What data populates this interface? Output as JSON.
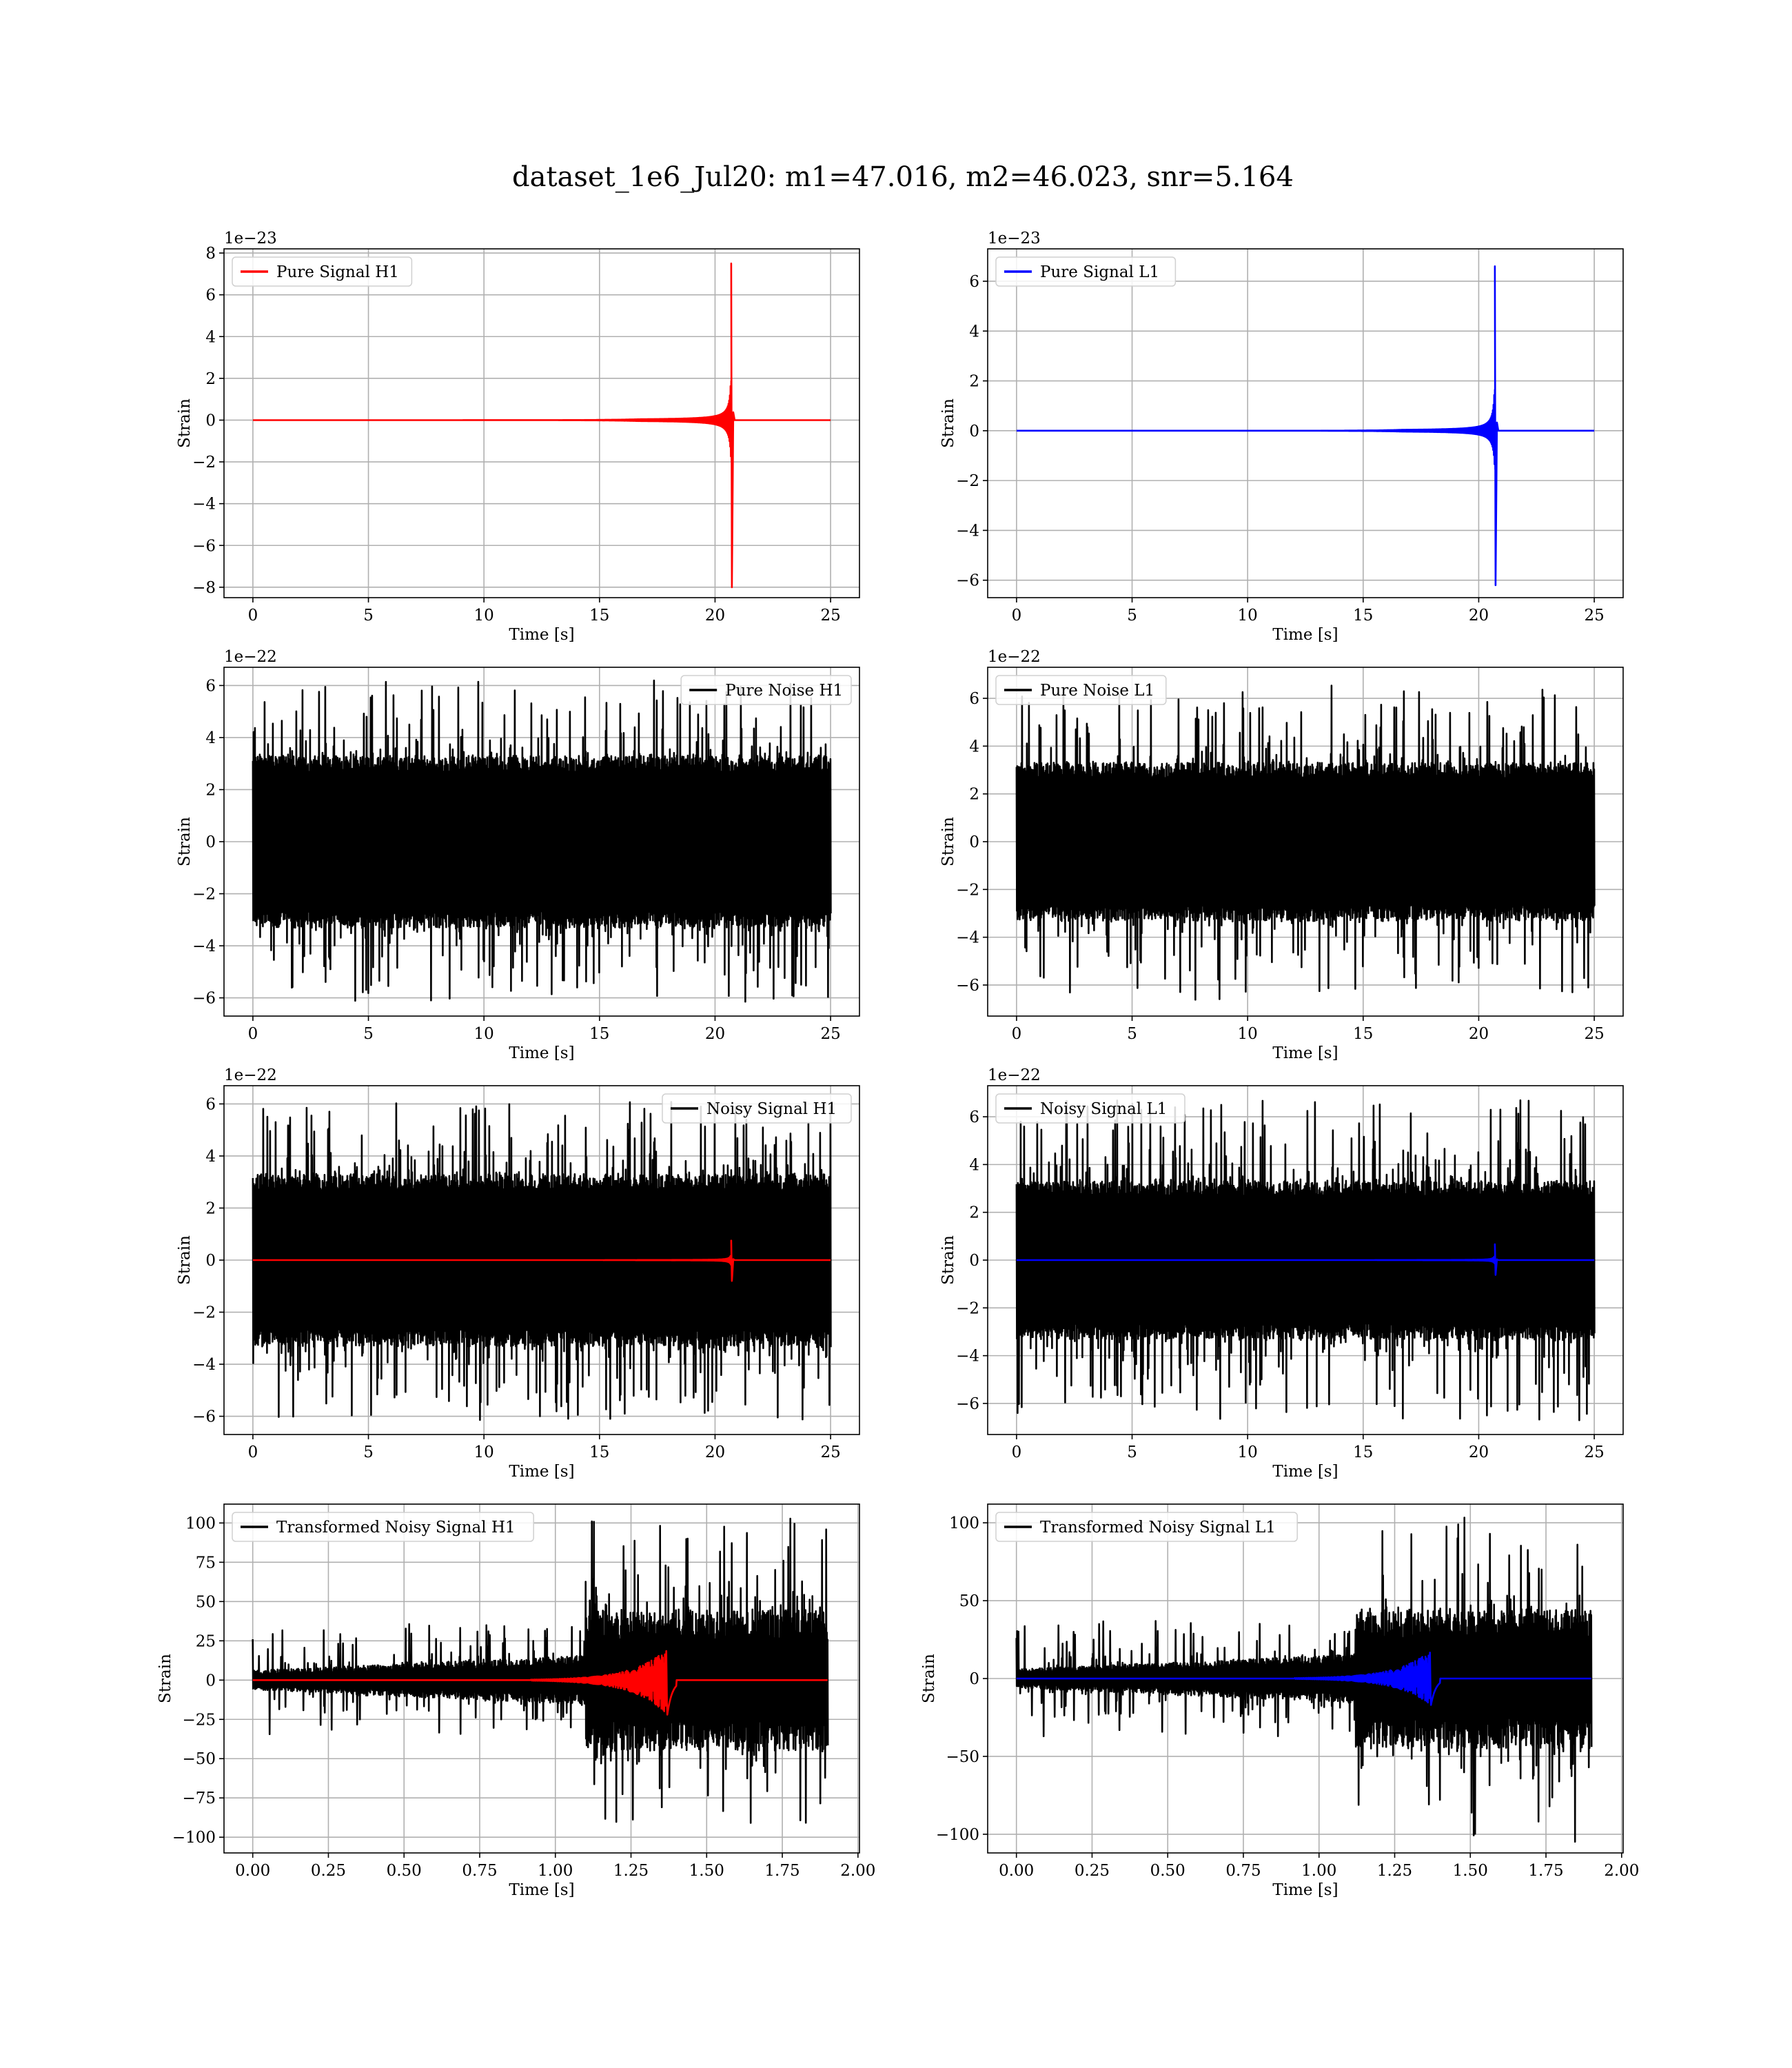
{
  "figure": {
    "title": "dataset_1e6_Jul20: m1=47.016, m2=46.023, snr=5.164"
  },
  "colors": {
    "h1_signal": "#ff0000",
    "l1_signal": "#0000ff",
    "noise": "#000000",
    "grid": "#b0b0b0",
    "axes": "#000000"
  },
  "chart_data": [
    {
      "id": "pure-signal-h1",
      "type": "line",
      "offset_label": "1e−23",
      "xlabel": "Time [s]",
      "ylabel": "Strain",
      "xlim": [
        -1.25,
        26.25
      ],
      "ylim": [
        -8.5,
        8.2
      ],
      "xticks": [
        0,
        5,
        10,
        15,
        20,
        25
      ],
      "xtick_labels": [
        "0",
        "5",
        "10",
        "15",
        "20",
        "25"
      ],
      "yticks": [
        -8,
        -6,
        -4,
        -2,
        0,
        2,
        4,
        6,
        8
      ],
      "ytick_labels": [
        "−8",
        "−6",
        "−4",
        "−2",
        "0",
        "2",
        "4",
        "6",
        "8"
      ],
      "grid": true,
      "legend_position": "upper-left",
      "series": [
        {
          "name": "Pure Signal H1",
          "kind": "chirp",
          "color": "#ff0000",
          "x_start": 0,
          "x_end": 25,
          "merger_time": 20.7,
          "peak_pos": 7.5,
          "peak_neg": -8.0,
          "in_legend": true
        }
      ]
    },
    {
      "id": "pure-signal-l1",
      "type": "line",
      "offset_label": "1e−23",
      "xlabel": "Time [s]",
      "ylabel": "Strain",
      "xlim": [
        -1.25,
        26.25
      ],
      "ylim": [
        -6.7,
        7.3
      ],
      "xticks": [
        0,
        5,
        10,
        15,
        20,
        25
      ],
      "xtick_labels": [
        "0",
        "5",
        "10",
        "15",
        "20",
        "25"
      ],
      "yticks": [
        -6,
        -4,
        -2,
        0,
        2,
        4,
        6
      ],
      "ytick_labels": [
        "−6",
        "−4",
        "−2",
        "0",
        "2",
        "4",
        "6"
      ],
      "grid": true,
      "legend_position": "upper-left",
      "series": [
        {
          "name": "Pure Signal L1",
          "kind": "chirp",
          "color": "#0000ff",
          "x_start": 0,
          "x_end": 25,
          "merger_time": 20.7,
          "peak_pos": 6.6,
          "peak_neg": -6.2,
          "in_legend": true
        }
      ]
    },
    {
      "id": "pure-noise-h1",
      "type": "line",
      "offset_label": "1e−22",
      "xlabel": "Time [s]",
      "ylabel": "Strain",
      "xlim": [
        -1.25,
        26.25
      ],
      "ylim": [
        -6.7,
        6.7
      ],
      "xticks": [
        0,
        5,
        10,
        15,
        20,
        25
      ],
      "xtick_labels": [
        "0",
        "5",
        "10",
        "15",
        "20",
        "25"
      ],
      "yticks": [
        -6,
        -4,
        -2,
        0,
        2,
        4,
        6
      ],
      "ytick_labels": [
        "−6",
        "−4",
        "−2",
        "0",
        "2",
        "4",
        "6"
      ],
      "grid": true,
      "legend_position": "upper-right",
      "series": [
        {
          "name": "Pure Noise H1",
          "kind": "noise",
          "color": "#000000",
          "x_start": 0,
          "x_end": 25,
          "band": 3.3,
          "spike_max": 6.2,
          "in_legend": true
        }
      ]
    },
    {
      "id": "pure-noise-l1",
      "type": "line",
      "offset_label": "1e−22",
      "xlabel": "Time [s]",
      "ylabel": "Strain",
      "xlim": [
        -1.25,
        26.25
      ],
      "ylim": [
        -7.3,
        7.3
      ],
      "xticks": [
        0,
        5,
        10,
        15,
        20,
        25
      ],
      "xtick_labels": [
        "0",
        "5",
        "10",
        "15",
        "20",
        "25"
      ],
      "yticks": [
        -6,
        -4,
        -2,
        0,
        2,
        4,
        6
      ],
      "ytick_labels": [
        "−6",
        "−4",
        "−2",
        "0",
        "2",
        "4",
        "6"
      ],
      "grid": true,
      "legend_position": "upper-left",
      "series": [
        {
          "name": "Pure Noise L1",
          "kind": "noise",
          "color": "#000000",
          "x_start": 0,
          "x_end": 25,
          "band": 3.3,
          "spike_max": 6.7,
          "in_legend": true
        }
      ]
    },
    {
      "id": "noisy-signal-h1",
      "type": "line",
      "offset_label": "1e−22",
      "xlabel": "Time [s]",
      "ylabel": "Strain",
      "xlim": [
        -1.25,
        26.25
      ],
      "ylim": [
        -6.7,
        6.7
      ],
      "xticks": [
        0,
        5,
        10,
        15,
        20,
        25
      ],
      "xtick_labels": [
        "0",
        "5",
        "10",
        "15",
        "20",
        "25"
      ],
      "yticks": [
        -6,
        -4,
        -2,
        0,
        2,
        4,
        6
      ],
      "ytick_labels": [
        "−6",
        "−4",
        "−2",
        "0",
        "2",
        "4",
        "6"
      ],
      "grid": true,
      "legend_position": "upper-right",
      "series": [
        {
          "name": "Noisy Signal H1",
          "kind": "noise",
          "color": "#000000",
          "x_start": 0,
          "x_end": 25,
          "band": 3.3,
          "spike_max": 6.2,
          "in_legend": true
        },
        {
          "name": "",
          "kind": "chirp",
          "color": "#ff0000",
          "x_start": 0,
          "x_end": 25,
          "merger_time": 20.7,
          "peak_pos": 0.75,
          "peak_neg": -0.8,
          "in_legend": false
        }
      ]
    },
    {
      "id": "noisy-signal-l1",
      "type": "line",
      "offset_label": "1e−22",
      "xlabel": "Time [s]",
      "ylabel": "Strain",
      "xlim": [
        -1.25,
        26.25
      ],
      "ylim": [
        -7.3,
        7.3
      ],
      "xticks": [
        0,
        5,
        10,
        15,
        20,
        25
      ],
      "xtick_labels": [
        "0",
        "5",
        "10",
        "15",
        "20",
        "25"
      ],
      "yticks": [
        -6,
        -4,
        -2,
        0,
        2,
        4,
        6
      ],
      "ytick_labels": [
        "−6",
        "−4",
        "−2",
        "0",
        "2",
        "4",
        "6"
      ],
      "grid": true,
      "legend_position": "upper-left",
      "series": [
        {
          "name": "Noisy Signal L1",
          "kind": "noise",
          "color": "#000000",
          "x_start": 0,
          "x_end": 25,
          "band": 3.3,
          "spike_max": 6.7,
          "in_legend": true
        },
        {
          "name": "",
          "kind": "chirp",
          "color": "#0000ff",
          "x_start": 0,
          "x_end": 25,
          "merger_time": 20.7,
          "peak_pos": 0.66,
          "peak_neg": -0.62,
          "in_legend": false
        }
      ]
    },
    {
      "id": "transformed-noisy-signal-h1",
      "type": "line",
      "offset_label": "",
      "xlabel": "Time [s]",
      "ylabel": "Strain",
      "xlim": [
        -0.095,
        2.005
      ],
      "ylim": [
        -110,
        112
      ],
      "xticks": [
        0,
        0.25,
        0.5,
        0.75,
        1.0,
        1.25,
        1.5,
        1.75,
        2.0
      ],
      "xtick_labels": [
        "0.00",
        "0.25",
        "0.50",
        "0.75",
        "1.00",
        "1.25",
        "1.50",
        "1.75",
        "2.00"
      ],
      "yticks": [
        -100,
        -75,
        -50,
        -25,
        0,
        25,
        50,
        75,
        100
      ],
      "ytick_labels": [
        "−100",
        "−75",
        "−50",
        "−25",
        "0",
        "25",
        "50",
        "75",
        "100"
      ],
      "grid": true,
      "legend_position": "upper-left",
      "series": [
        {
          "name": "Transformed Noisy Signal H1",
          "kind": "whitened",
          "color": "#000000",
          "x_start": 0,
          "x_end": 1.9,
          "step_time": 1.1,
          "band_early": 6,
          "band_late": 45,
          "spike_max": 103,
          "spike_min": -100,
          "in_legend": true
        },
        {
          "name": "",
          "kind": "whitened-chirp",
          "color": "#ff0000",
          "x_start": 0,
          "x_end": 1.9,
          "merger_time": 1.37,
          "peak_pos": 20,
          "peak_neg": -22,
          "in_legend": false
        }
      ]
    },
    {
      "id": "transformed-noisy-signal-l1",
      "type": "line",
      "offset_label": "",
      "xlabel": "Time [s]",
      "ylabel": "Strain",
      "xlim": [
        -0.095,
        2.005
      ],
      "ylim": [
        -112,
        112
      ],
      "xticks": [
        0,
        0.25,
        0.5,
        0.75,
        1.0,
        1.25,
        1.5,
        1.75,
        2.0
      ],
      "xtick_labels": [
        "0.00",
        "0.25",
        "0.50",
        "0.75",
        "1.00",
        "1.25",
        "1.50",
        "1.75",
        "2.00"
      ],
      "yticks": [
        -100,
        -50,
        0,
        50,
        100
      ],
      "ytick_labels": [
        "−100",
        "−50",
        "0",
        "50",
        "100"
      ],
      "grid": true,
      "legend_position": "upper-left",
      "series": [
        {
          "name": "Transformed Noisy Signal L1",
          "kind": "whitened",
          "color": "#000000",
          "x_start": 0,
          "x_end": 1.9,
          "step_time": 1.12,
          "band_early": 6,
          "band_late": 45,
          "spike_max": 106,
          "spike_min": -106,
          "in_legend": true
        },
        {
          "name": "",
          "kind": "whitened-chirp",
          "color": "#0000ff",
          "x_start": 0,
          "x_end": 1.9,
          "merger_time": 1.37,
          "peak_pos": 18,
          "peak_neg": -17,
          "in_legend": false
        }
      ]
    }
  ]
}
